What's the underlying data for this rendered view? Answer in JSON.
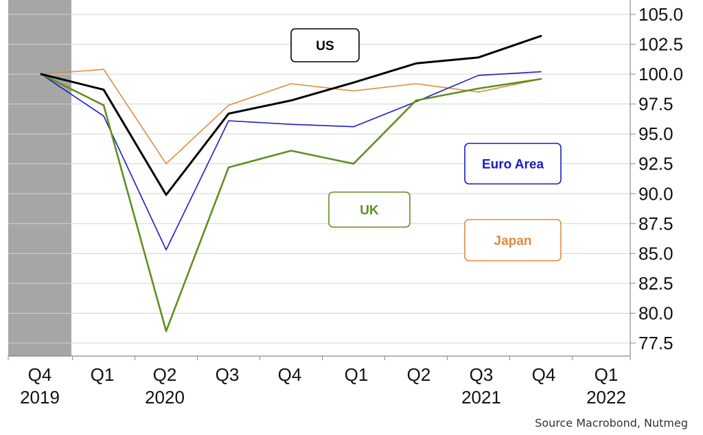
{
  "chart_data": {
    "type": "line",
    "title": "",
    "xlabel": "",
    "ylabel": "",
    "ylim": [
      77.5,
      105.0
    ],
    "yticks": [
      "105.0",
      "102.5",
      "100.0",
      "97.5",
      "95.0",
      "92.5",
      "90.0",
      "87.5",
      "85.0",
      "82.5",
      "80.0",
      "77.5"
    ],
    "x_categories": [
      {
        "quarter": "Q4",
        "year": "2019"
      },
      {
        "quarter": "Q1",
        "year": ""
      },
      {
        "quarter": "Q2",
        "year": "2020"
      },
      {
        "quarter": "Q3",
        "year": ""
      },
      {
        "quarter": "Q4",
        "year": ""
      },
      {
        "quarter": "Q1",
        "year": ""
      },
      {
        "quarter": "Q2",
        "year": ""
      },
      {
        "quarter": "Q3",
        "year": "2021"
      },
      {
        "quarter": "Q4",
        "year": ""
      },
      {
        "quarter": "Q1",
        "year": "2022"
      }
    ],
    "shaded_period": "Q4 2019",
    "grid": "horizontal",
    "series": [
      {
        "name": "US",
        "color": "#000000",
        "values": [
          100.0,
          98.7,
          89.9,
          96.7,
          97.8,
          99.3,
          100.9,
          101.4,
          103.2
        ]
      },
      {
        "name": "Euro Area",
        "color": "#1a1acc",
        "values": [
          100.0,
          96.5,
          85.3,
          96.1,
          95.8,
          95.6,
          97.7,
          99.9,
          100.2
        ]
      },
      {
        "name": "UK",
        "color": "#5e8f1e",
        "values": [
          100.0,
          97.4,
          78.5,
          92.2,
          93.6,
          92.5,
          97.8,
          98.8,
          99.6
        ]
      },
      {
        "name": "Japan",
        "color": "#e08a3c",
        "values": [
          100.0,
          100.4,
          92.5,
          97.4,
          99.2,
          98.6,
          99.2,
          98.5,
          99.6
        ]
      }
    ]
  },
  "source": "Source Macrobond, Nutmeg"
}
